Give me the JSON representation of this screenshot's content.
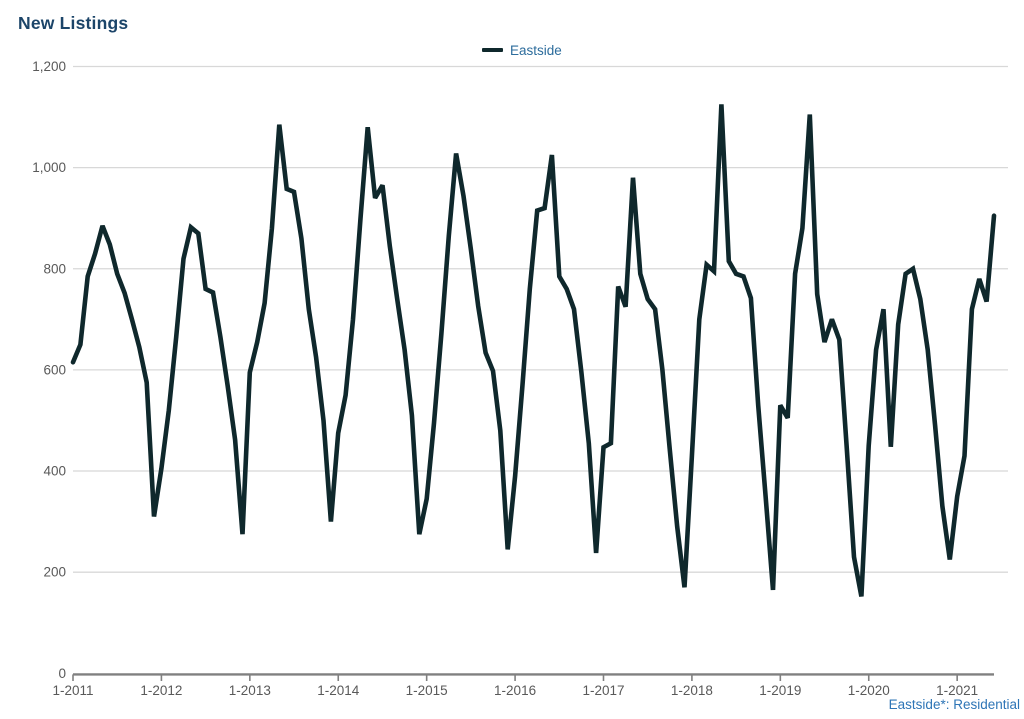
{
  "page": {
    "title": "New Listings"
  },
  "legend": {
    "label": "Eastside"
  },
  "footnote": {
    "text": "Eastside*: Residential"
  },
  "colors": {
    "series_line": "#0f282c",
    "title_text": "#1c4569",
    "legend_text": "#2c6c9c",
    "footnote_text": "#2e75b6",
    "axis_text": "#595959",
    "gridline": "#d8d8d8",
    "axis_line": "#808080",
    "background": "#ffffff"
  },
  "chart_data": {
    "type": "line",
    "title": "New Listings",
    "xlabel": "",
    "ylabel": "",
    "ylim": [
      0,
      1200
    ],
    "grid": "horizontal-only",
    "legend_position": "top-center",
    "x_start": "1-2011",
    "x_step": "1 month",
    "x_tick_labels": [
      "1-2011",
      "1-2012",
      "1-2013",
      "1-2014",
      "1-2015",
      "1-2016",
      "1-2017",
      "1-2018",
      "1-2019",
      "1-2020",
      "1-2021"
    ],
    "x_tick_every_n_points": 12,
    "y_ticks": [
      {
        "value": 0,
        "label": "0"
      },
      {
        "value": 200,
        "label": "200"
      },
      {
        "value": 400,
        "label": "400"
      },
      {
        "value": 600,
        "label": "600"
      },
      {
        "value": 800,
        "label": "800"
      },
      {
        "value": 1000,
        "label": "1,000"
      },
      {
        "value": 1200,
        "label": "1,200"
      }
    ],
    "series": [
      {
        "name": "Eastside",
        "values": [
          615,
          650,
          785,
          830,
          885,
          848,
          790,
          752,
          700,
          645,
          575,
          310,
          405,
          520,
          665,
          820,
          882,
          870,
          760,
          753,
          665,
          568,
          462,
          275,
          595,
          655,
          732,
          880,
          1085,
          958,
          952,
          860,
          720,
          625,
          500,
          300,
          475,
          550,
          700,
          897,
          1080,
          940,
          965,
          845,
          740,
          640,
          510,
          275,
          345,
          495,
          672,
          865,
          1028,
          944,
          838,
          726,
          634,
          598,
          480,
          245,
          390,
          568,
          760,
          915,
          920,
          1025,
          785,
          760,
          720,
          595,
          455,
          238,
          447,
          455,
          765,
          725,
          980,
          790,
          740,
          720,
          600,
          442,
          290,
          170,
          430,
          700,
          808,
          795,
          1125,
          815,
          790,
          785,
          742,
          530,
          350,
          165,
          530,
          505,
          790,
          880,
          1105,
          750,
          655,
          700,
          660,
          450,
          230,
          152,
          450,
          640,
          720,
          448,
          690,
          790,
          800,
          740,
          640,
          490,
          330,
          225,
          350,
          430,
          720,
          780,
          735,
          905
        ]
      }
    ]
  }
}
